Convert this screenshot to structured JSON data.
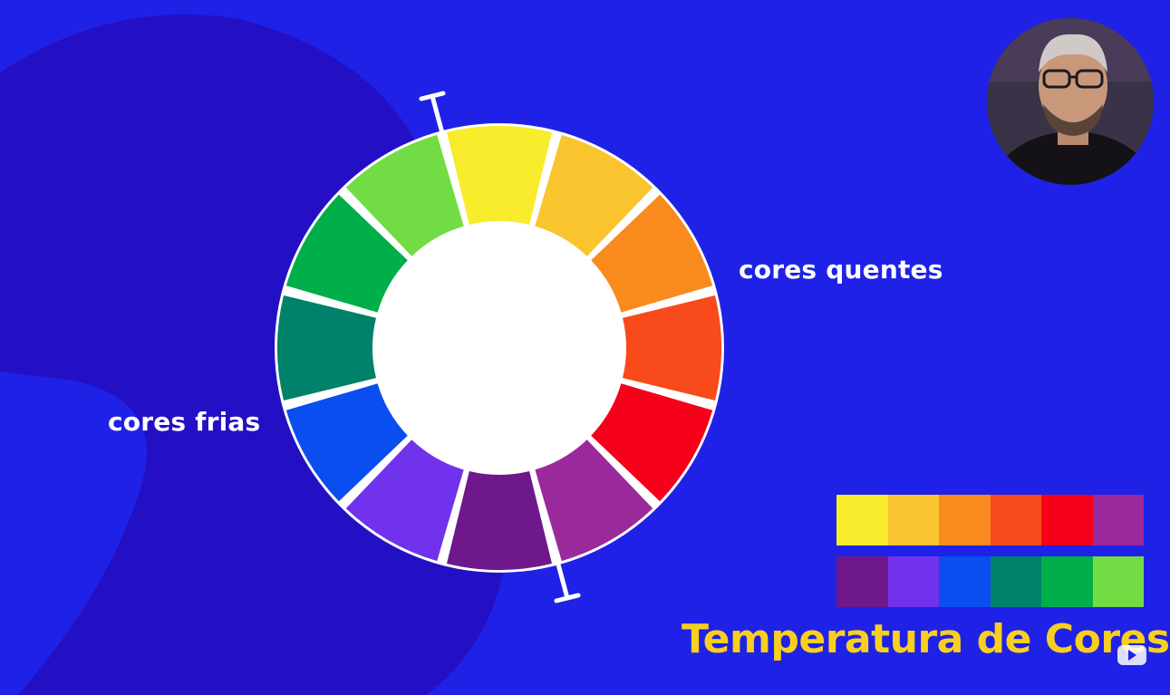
{
  "labels": {
    "warm": "cores quentes",
    "cool": "cores frias",
    "title": "Temperatura de Cores"
  },
  "colors": {
    "background": "#1f22e6",
    "background_shape": "#2310c4",
    "title": "#f9cf1f",
    "divider": "#ffffff"
  },
  "wheel_segments": [
    {
      "name": "yellow",
      "color": "#f8ec2c"
    },
    {
      "name": "yellow-orange",
      "color": "#f9c42e"
    },
    {
      "name": "orange",
      "color": "#f98a1e"
    },
    {
      "name": "red-orange",
      "color": "#f84a1a"
    },
    {
      "name": "red",
      "color": "#f6001a"
    },
    {
      "name": "red-violet",
      "color": "#9a2a9c"
    },
    {
      "name": "violet",
      "color": "#6e188c"
    },
    {
      "name": "blue-violet",
      "color": "#7032ec"
    },
    {
      "name": "blue",
      "color": "#0a4ef0"
    },
    {
      "name": "blue-green",
      "color": "#00816a"
    },
    {
      "name": "green",
      "color": "#00ae4a"
    },
    {
      "name": "yellow-green",
      "color": "#72dc44"
    }
  ],
  "warm_swatches": [
    "#f8ec2c",
    "#f9c42e",
    "#f98a1e",
    "#f84a1a",
    "#f6001a",
    "#9a2a9c"
  ],
  "cool_swatches": [
    "#6e188c",
    "#7032ec",
    "#0a4ef0",
    "#00816a",
    "#00ae4a",
    "#72dc44"
  ],
  "icons": {
    "presenter": "presenter-avatar",
    "badge": "play-badge-icon"
  }
}
